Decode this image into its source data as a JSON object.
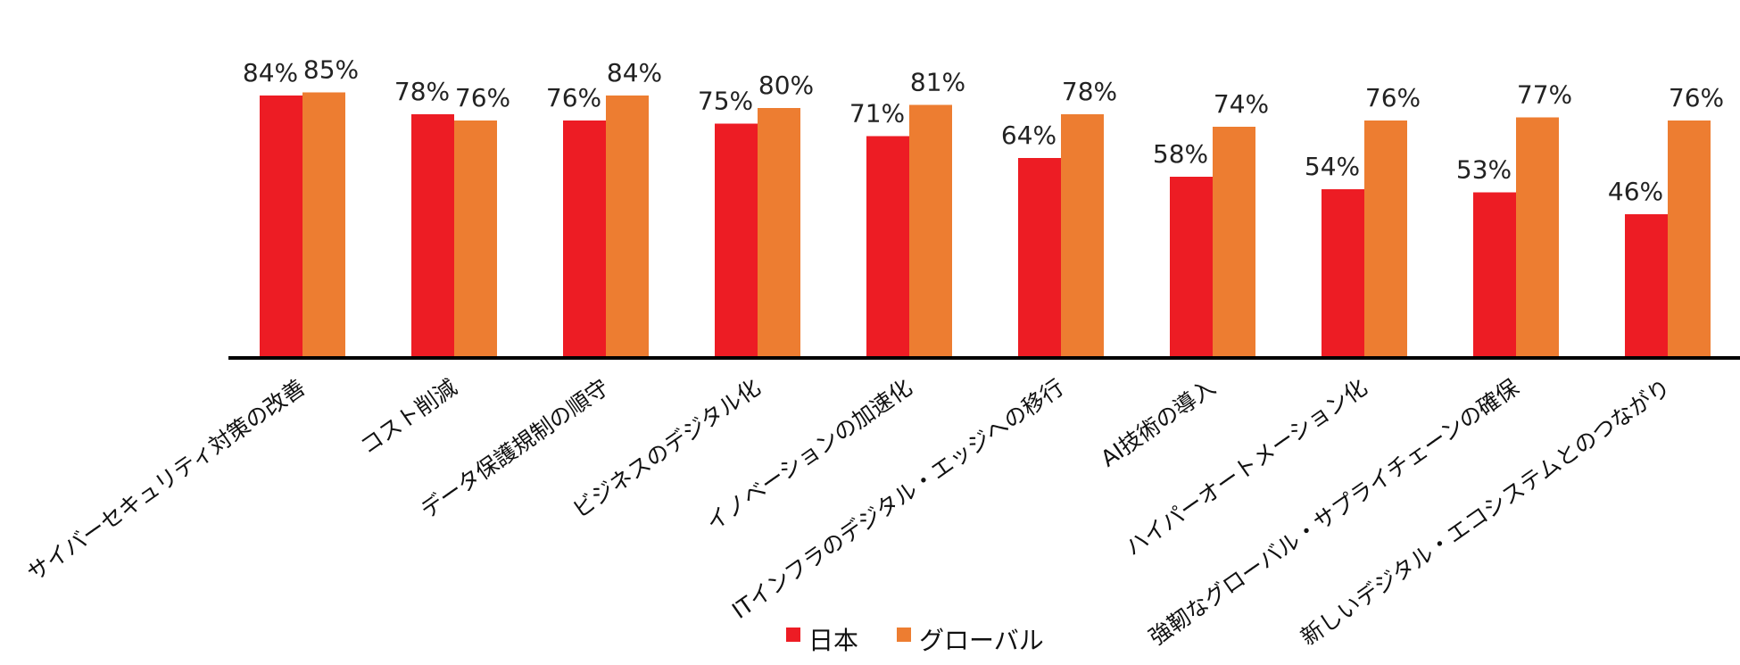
{
  "chart_data": {
    "type": "bar",
    "categories": [
      "サイバーセキュリティ対策の改善",
      "コスト削減",
      "データ保護規制の順守",
      "ビジネスのデジタル化",
      "イノベーションの加速化",
      "ITインフラのデジタル・エッジへの移行",
      "AI技術の導入",
      "ハイパーオートメーション化",
      "強靭なグローバル・サプライチェーンの確保",
      "新しいデジタル・エコシステムとのつながり"
    ],
    "series": [
      {
        "name": "日本",
        "color": "#ED1C24",
        "values": [
          84,
          78,
          76,
          75,
          71,
          64,
          58,
          54,
          53,
          46
        ],
        "labels": [
          "84%",
          "78%",
          "76%",
          "75%",
          "71%",
          "64%",
          "58%",
          "54%",
          "53%",
          "46%"
        ]
      },
      {
        "name": "グローバル",
        "color": "#ED7D31",
        "values": [
          85,
          76,
          84,
          80,
          81,
          78,
          74,
          76,
          77,
          76
        ],
        "labels": [
          "85%",
          "76%",
          "84%",
          "80%",
          "81%",
          "78%",
          "74%",
          "76%",
          "77%",
          "76%"
        ]
      }
    ],
    "ylim": [
      0,
      100
    ],
    "grid": false,
    "legend_position": "bottom-center",
    "axis_color": "#000000"
  }
}
